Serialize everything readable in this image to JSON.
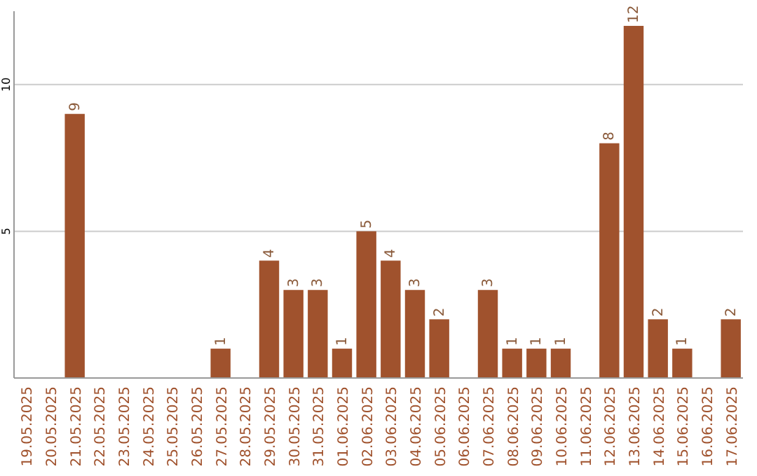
{
  "chart_data": {
    "type": "bar",
    "categories": [
      "19.05.2025",
      "20.05.2025",
      "21.05.2025",
      "22.05.2025",
      "23.05.2025",
      "24.05.2025",
      "25.05.2025",
      "26.05.2025",
      "27.05.2025",
      "28.05.2025",
      "29.05.2025",
      "30.05.2025",
      "31.05.2025",
      "01.06.2025",
      "02.06.2025",
      "03.06.2025",
      "04.06.2025",
      "05.06.2025",
      "06.06.2025",
      "07.06.2025",
      "08.06.2025",
      "09.06.2025",
      "10.06.2025",
      "11.06.2025",
      "12.06.2025",
      "13.06.2025",
      "14.06.2025",
      "15.06.2025",
      "16.06.2025",
      "17.06.2025"
    ],
    "values": [
      0,
      0,
      9,
      0,
      0,
      0,
      0,
      0,
      1,
      0,
      4,
      3,
      3,
      1,
      5,
      4,
      3,
      2,
      0,
      3,
      1,
      1,
      1,
      0,
      8,
      12,
      2,
      1,
      0,
      2
    ],
    "value_labels": [
      null,
      null,
      "9",
      null,
      null,
      null,
      null,
      null,
      "1",
      null,
      "4",
      "3",
      "3",
      "1",
      "5",
      "4",
      "3",
      "2",
      null,
      "3",
      "1",
      "1",
      "1",
      null,
      "8",
      "12",
      "2",
      "1",
      null,
      "2"
    ],
    "color": "#a0522d",
    "ylim": [
      0,
      12.5
    ],
    "yticks": [
      5,
      10
    ],
    "grid": "y"
  }
}
